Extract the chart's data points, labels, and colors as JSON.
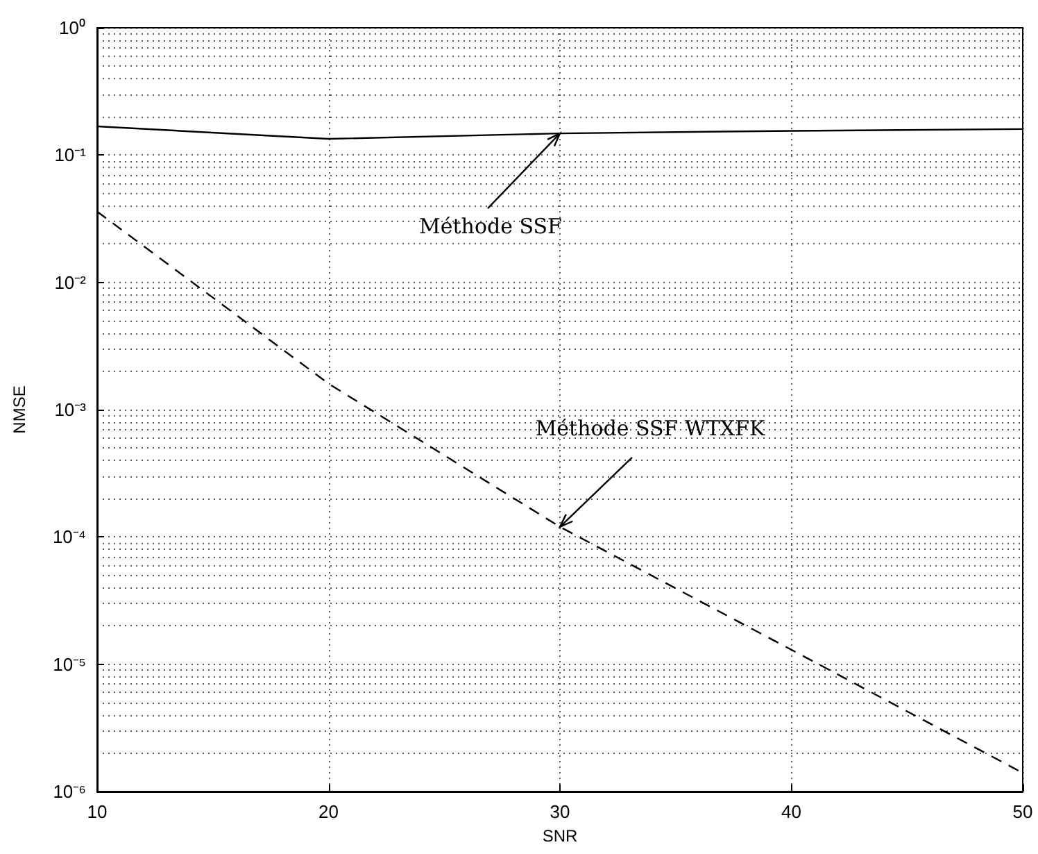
{
  "chart_data": {
    "type": "line",
    "xlabel": "SNR",
    "ylabel": "NMSE",
    "x": [
      10,
      20,
      30,
      40,
      50
    ],
    "series": [
      {
        "color": "#000000",
        "line_style": "solid",
        "values": [
          0.168,
          0.134,
          0.148,
          0.155,
          0.16
        ]
      },
      {
        "color": "#000000",
        "line_style": "dashed",
        "values": [
          0.036,
          0.0016,
          0.00012,
          1.3e-05,
          1.4e-06
        ]
      }
    ],
    "annotations": [
      {
        "text": "Méthode SSF",
        "x": 30,
        "y": 0.148
      },
      {
        "text": "Méthode SSF WTXFK",
        "x": 30,
        "y": 0.00012
      }
    ],
    "xlim": [
      10,
      50
    ],
    "xticks": [
      10,
      20,
      30,
      40,
      50
    ],
    "ylim": [
      1e-06,
      1
    ],
    "yticks": [
      {
        "value": 1e-06,
        "label": "10⁻⁶"
      },
      {
        "value": 1e-05,
        "label": "10⁻⁵"
      },
      {
        "value": 0.0001,
        "label": "10⁻⁴"
      },
      {
        "value": 0.001,
        "label": "10⁻³"
      },
      {
        "value": 0.01,
        "label": "10⁻²"
      },
      {
        "value": 0.1,
        "label": "10⁻¹"
      },
      {
        "value": 1,
        "label": "10⁰"
      }
    ],
    "log": "y",
    "grid": true
  }
}
